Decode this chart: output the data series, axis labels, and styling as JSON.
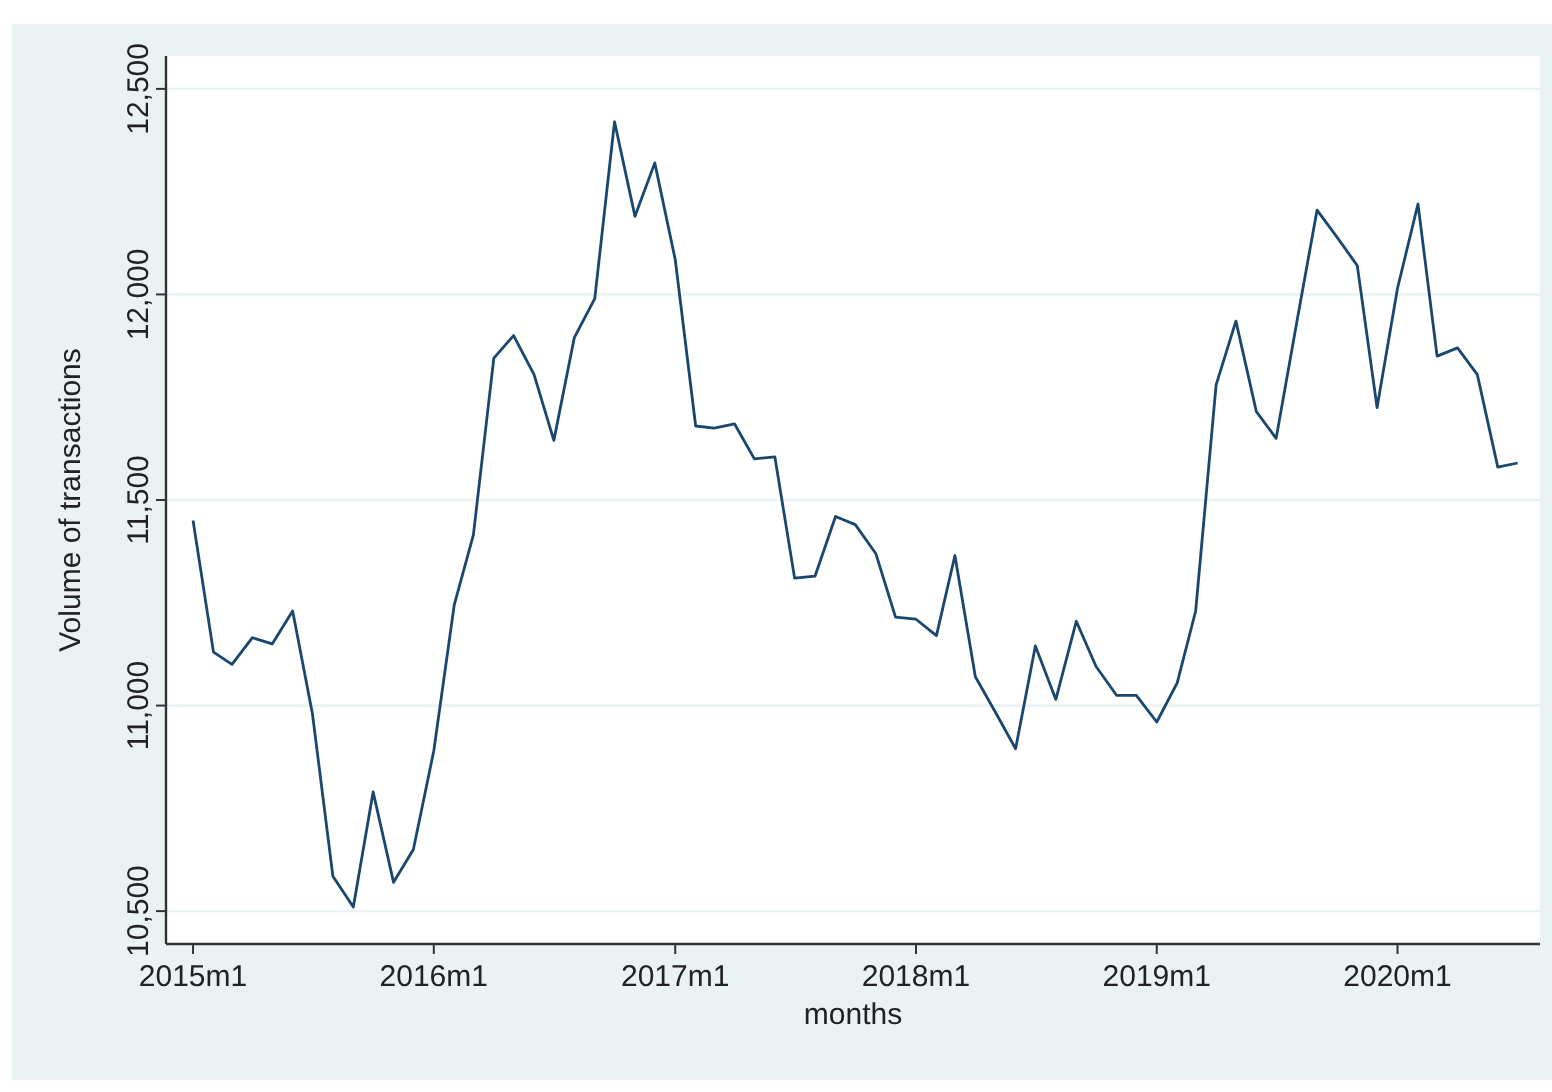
{
  "chart_data": {
    "type": "line",
    "xlabel": "months",
    "ylabel": "Volume of transactions",
    "x": [
      "2015-01",
      "2015-02",
      "2015-03",
      "2015-04",
      "2015-05",
      "2015-06",
      "2015-07",
      "2015-08",
      "2015-09",
      "2015-10",
      "2015-11",
      "2015-12",
      "2016-01",
      "2016-02",
      "2016-03",
      "2016-04",
      "2016-05",
      "2016-06",
      "2016-07",
      "2016-08",
      "2016-09",
      "2016-10",
      "2016-11",
      "2016-12",
      "2017-01",
      "2017-02",
      "2017-03",
      "2017-04",
      "2017-05",
      "2017-06",
      "2017-07",
      "2017-08",
      "2017-09",
      "2017-10",
      "2017-11",
      "2017-12",
      "2018-01",
      "2018-02",
      "2018-03",
      "2018-04",
      "2018-05",
      "2018-06",
      "2018-07",
      "2018-08",
      "2018-09",
      "2018-10",
      "2018-11",
      "2018-12",
      "2019-01",
      "2019-02",
      "2019-03",
      "2019-04",
      "2019-05",
      "2019-06",
      "2019-07",
      "2019-08",
      "2019-09",
      "2019-10",
      "2019-11",
      "2019-12",
      "2020-01",
      "2020-02",
      "2020-03",
      "2020-04",
      "2020-05",
      "2020-06",
      "2020-07"
    ],
    "series": [
      {
        "color": "#1a476f",
        "values": [
          11450,
          11130,
          11100,
          11165,
          11150,
          11230,
          10980,
          10585,
          10510,
          10790,
          10570,
          10650,
          10890,
          11245,
          11415,
          11845,
          11900,
          11805,
          11645,
          11895,
          11990,
          12420,
          12190,
          12320,
          12085,
          11680,
          11675,
          11685,
          11600,
          11605,
          11310,
          11315,
          11460,
          11440,
          11370,
          11215,
          11210,
          11170,
          11365,
          11070,
          10985,
          10895,
          11145,
          11015,
          11205,
          11095,
          11025,
          11025,
          10960,
          11055,
          11230,
          11780,
          11935,
          11715,
          11650,
          11930,
          12205,
          12140,
          12070,
          11725,
          12015,
          12220,
          11850,
          11870,
          11805,
          11580,
          11590
        ]
      }
    ],
    "xlim": [
      "2014-11-21",
      "2020-08-04"
    ],
    "xticks": [
      {
        "value": "2015-01",
        "label": "2015m1"
      },
      {
        "value": "2016-01",
        "label": "2016m1"
      },
      {
        "value": "2017-01",
        "label": "2017m1"
      },
      {
        "value": "2018-01",
        "label": "2018m1"
      },
      {
        "value": "2019-01",
        "label": "2019m1"
      },
      {
        "value": "2020-01",
        "label": "2020m1"
      }
    ],
    "ylim": [
      10420,
      12580
    ],
    "yticks": [
      {
        "value": 10500,
        "label": "10,500"
      },
      {
        "value": 11000,
        "label": "11,000"
      },
      {
        "value": 11500,
        "label": "11,500"
      },
      {
        "value": 12000,
        "label": "12,000"
      },
      {
        "value": 12500,
        "label": "12,500"
      }
    ],
    "grid": "y",
    "marker": "none",
    "line_style": "solid"
  }
}
